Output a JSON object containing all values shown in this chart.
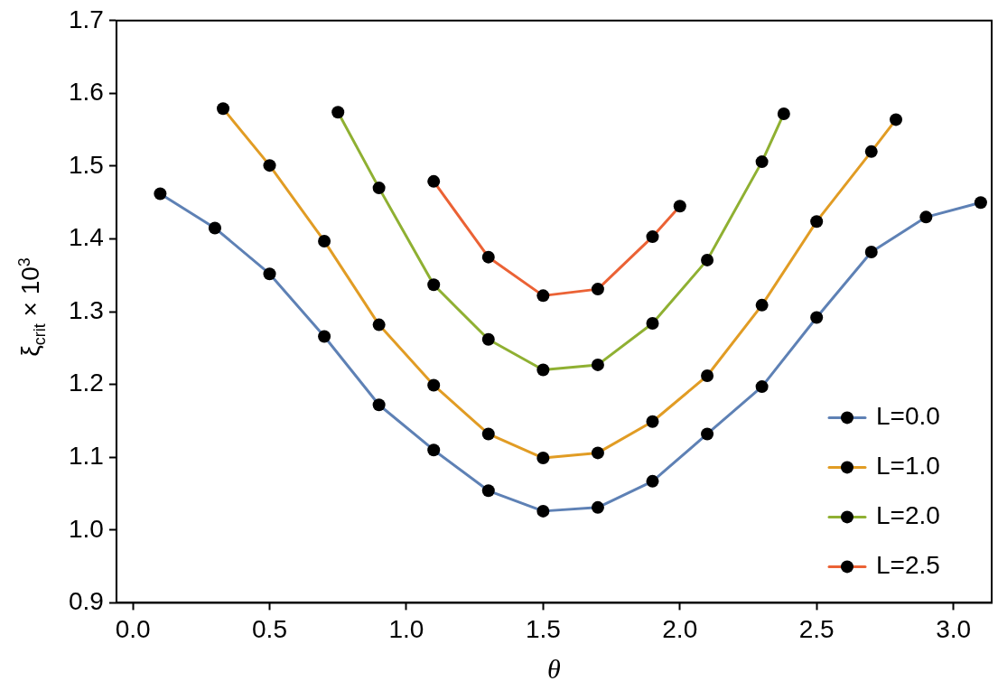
{
  "chart_data": {
    "type": "line",
    "xlabel": "θ",
    "ylabel": "ξ$_{crit}$ × 10$^{3}$",
    "xlim": [
      -0.06,
      3.14
    ],
    "xticks": [
      {
        "value": 0,
        "label": "0.0"
      },
      0.5,
      {
        "value": 1,
        "label": "1.0"
      },
      1.5,
      {
        "value": 2,
        "label": "2.0"
      },
      2.5,
      {
        "value": 3,
        "label": "3.0"
      }
    ],
    "ylim": [
      0.9,
      1.7
    ],
    "yticks": [
      0.9,
      {
        "value": 1,
        "label": "1.0"
      },
      1.1,
      1.2,
      1.3,
      1.4,
      1.5,
      1.6,
      1.7
    ],
    "grid": false,
    "legend": "bottom right",
    "marker": "circle",
    "line_style": "solid",
    "series": [
      {
        "name": "L=0.0",
        "color": "#5e81b5",
        "x": [
          0.1,
          0.3,
          0.5,
          0.7,
          0.9,
          1.1,
          1.3,
          1.5,
          1.7,
          1.9,
          2.1,
          2.3,
          2.5,
          2.7,
          2.9,
          3.1
        ],
        "values": [
          1.462,
          1.415,
          1.352,
          1.266,
          1.172,
          1.11,
          1.054,
          1.026,
          1.031,
          1.067,
          1.132,
          1.197,
          1.292,
          1.382,
          1.43,
          1.45
        ]
      },
      {
        "name": "L=1.0",
        "color": "#e19c24",
        "x": [
          0.33,
          0.5,
          0.7,
          0.9,
          1.1,
          1.3,
          1.5,
          1.7,
          1.9,
          2.1,
          2.3,
          2.5,
          2.7,
          2.79
        ],
        "values": [
          1.579,
          1.501,
          1.397,
          1.282,
          1.199,
          1.132,
          1.099,
          1.106,
          1.149,
          1.212,
          1.309,
          1.424,
          1.52,
          1.564
        ]
      },
      {
        "name": "L=2.0",
        "color": "#8fb032",
        "x": [
          0.75,
          0.9,
          1.1,
          1.3,
          1.5,
          1.7,
          1.9,
          2.1,
          2.3,
          2.38
        ],
        "values": [
          1.574,
          1.47,
          1.337,
          1.262,
          1.22,
          1.227,
          1.284,
          1.371,
          1.506,
          1.572
        ]
      },
      {
        "name": "L=2.5",
        "color": "#eb6235",
        "x": [
          1.1,
          1.3,
          1.5,
          1.7,
          1.9,
          2.0
        ],
        "values": [
          1.479,
          1.375,
          1.322,
          1.331,
          1.403,
          1.445
        ]
      }
    ]
  }
}
